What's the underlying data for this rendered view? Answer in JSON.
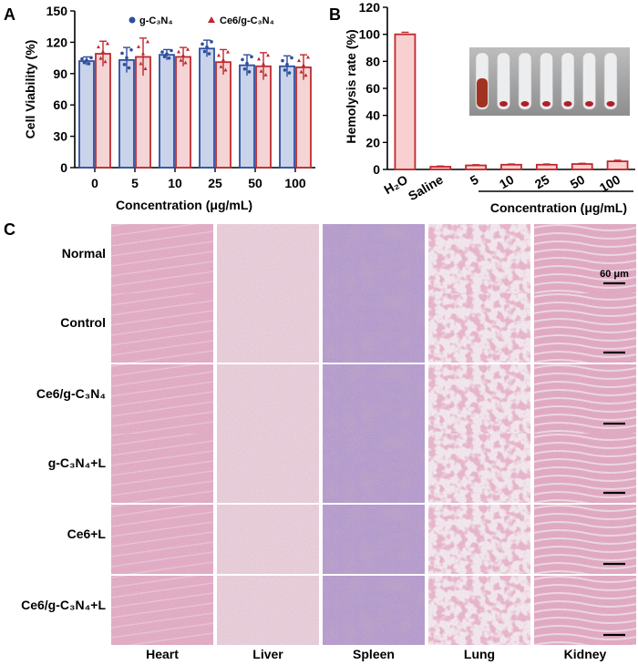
{
  "panels": {
    "a": "A",
    "b": "B",
    "c": "C"
  },
  "chart_data": [
    {
      "type": "bar",
      "panel": "A",
      "categories": [
        "0",
        "5",
        "10",
        "25",
        "50",
        "100"
      ],
      "xlabel": "Concentration (μg/mL)",
      "ylabel": "Cell Viability (%)",
      "ylim": [
        0,
        150
      ],
      "yticks": [
        0,
        30,
        60,
        90,
        120,
        150
      ],
      "legend": "top-right",
      "series": [
        {
          "name": "g-C₃N₄",
          "color": "#2e4fa0",
          "fill": "#c9d3ea",
          "marker": "circle",
          "values": [
            102,
            103,
            108,
            114,
            98,
            97
          ],
          "errors": [
            4,
            12,
            5,
            8,
            10,
            10
          ]
        },
        {
          "name": "Ce6/g-C₃N₄",
          "color": "#c0282d",
          "fill": "#f4d4d4",
          "marker": "triangle",
          "values": [
            109,
            106,
            106,
            101,
            97,
            96
          ],
          "errors": [
            12,
            18,
            9,
            12,
            13,
            12
          ]
        }
      ]
    },
    {
      "type": "bar",
      "panel": "B",
      "categories": [
        "H₂O",
        "Saline",
        "5",
        "10",
        "25",
        "50",
        "100"
      ],
      "group_label": "Concentration (μg/mL)",
      "ylabel": "Hemolysis rate (%)",
      "ylim": [
        0,
        120
      ],
      "yticks": [
        0,
        20,
        40,
        60,
        80,
        100,
        120
      ],
      "series": [
        {
          "color": "#c0282d",
          "fill": "#f9d0d0",
          "values": [
            100,
            2,
            3,
            3.5,
            3.5,
            4,
            6
          ],
          "errors": [
            1.5,
            0.5,
            0.5,
            0.5,
            0.5,
            0.5,
            0.8
          ]
        }
      ]
    }
  ],
  "histology": {
    "rows": [
      "Normal",
      "Control",
      "Ce6/g-C₃N₄",
      "g-C₃N₄+L",
      "Ce6+L",
      "Ce6/g-C₃N₄+L"
    ],
    "columns": [
      "Heart",
      "Liver",
      "Spleen",
      "Lung",
      "Kidney"
    ],
    "scale_label": "60 μm",
    "colors": {
      "heart": "#e8a9c6",
      "liver": "#efd0de",
      "spleen": "#b99ccb",
      "lung": "#fbeef4",
      "kidney": "#e7a6c4"
    }
  }
}
